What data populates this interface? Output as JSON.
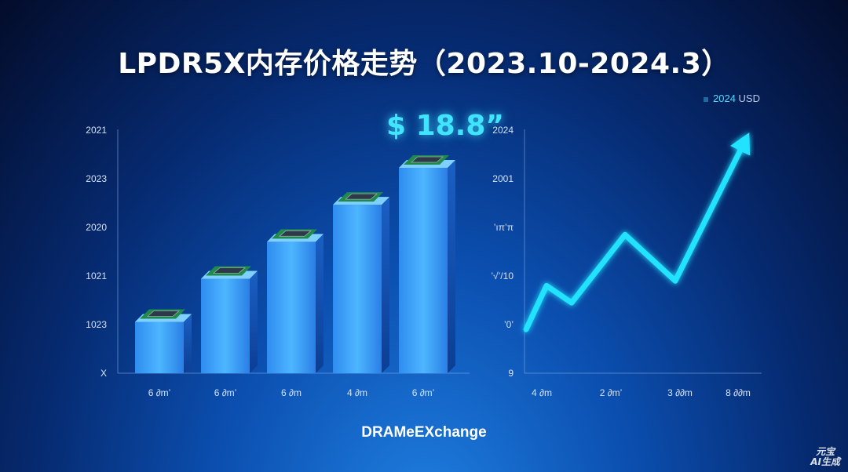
{
  "title": "LPDR5X内存价格走势（2023.10-2024.3）",
  "legend": {
    "label": "2024",
    "unit": "USD"
  },
  "callout": "$ 18.8”",
  "source": "DRAMeEXchange",
  "watermark": [
    "元宝",
    "AI生成"
  ],
  "colors": {
    "bar": "#3aa8ff",
    "line": "#22e3ff",
    "accent": "#40e4ff"
  },
  "chart_data": [
    {
      "type": "bar",
      "y_tick_labels": [
        "X",
        "1023",
        "1021",
        "2020",
        "2023",
        "2021"
      ],
      "categories": [
        "6 ∂m’",
        "6 ∂m’",
        "6 ∂m",
        "4 ∂m",
        "6 ∂m’"
      ],
      "values": [
        0.25,
        0.46,
        0.64,
        0.82,
        1.0
      ],
      "annotation": "$ 18.8”",
      "grid": false
    },
    {
      "type": "line",
      "y_tick_labels": [
        "9",
        "’0’",
        "’√’/10",
        "’ıπ’π",
        "2001",
        "2024"
      ],
      "x_tick_labels": [
        "4 ∂m",
        "2 ∂m’",
        "3 ∂∂m",
        "8 ∂∂m"
      ],
      "values": [
        0.18,
        0.36,
        0.29,
        0.57,
        0.38,
        0.95
      ],
      "grid": false
    }
  ]
}
